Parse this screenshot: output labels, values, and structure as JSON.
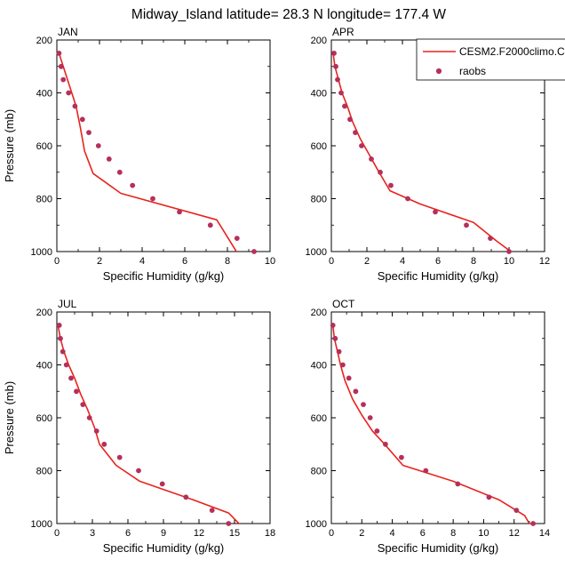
{
  "title": "Midway_Island  latitude= 28.3 N longitude= 177.4 W",
  "legend": {
    "model_label": "CESM2.F2000climo.C",
    "obs_label": "raobs",
    "line_color": "#e8231d",
    "marker_color": "#b5305a"
  },
  "chart_data": [
    {
      "type": "line",
      "panel_label": "JAN",
      "xlabel": "Specific Humidity (g/kg)",
      "ylabel": "Pressure (mb)",
      "xlim": [
        0,
        10
      ],
      "ylim": [
        200,
        1000
      ],
      "y_inverted": true,
      "x_ticks": [
        0,
        2,
        4,
        6,
        8,
        10
      ],
      "y_ticks": [
        200,
        400,
        600,
        800,
        1000
      ],
      "series": [
        {
          "name": "CESM2.F2000climo.C",
          "style": "line",
          "points": [
            [
              0.1,
              250
            ],
            [
              0.3,
              300
            ],
            [
              0.5,
              350
            ],
            [
              0.7,
              400
            ],
            [
              0.9,
              450
            ],
            [
              1.1,
              530
            ],
            [
              1.3,
              620
            ],
            [
              1.7,
              705
            ],
            [
              3.0,
              780
            ],
            [
              7.5,
              880
            ],
            [
              8.5,
              1010
            ]
          ]
        },
        {
          "name": "raobs",
          "style": "markers",
          "points": [
            [
              0.1,
              250
            ],
            [
              0.2,
              300
            ],
            [
              0.3,
              350
            ],
            [
              0.55,
              400
            ],
            [
              0.85,
              450
            ],
            [
              1.2,
              500
            ],
            [
              1.5,
              550
            ],
            [
              1.95,
              600
            ],
            [
              2.45,
              650
            ],
            [
              2.95,
              700
            ],
            [
              3.55,
              750
            ],
            [
              4.5,
              800
            ],
            [
              5.75,
              850
            ],
            [
              7.2,
              900
            ],
            [
              8.45,
              950
            ],
            [
              9.25,
              1000
            ]
          ]
        }
      ]
    },
    {
      "type": "line",
      "panel_label": "APR",
      "xlabel": "Specific Humidity (g/kg)",
      "ylabel": "",
      "xlim": [
        0,
        12
      ],
      "ylim": [
        200,
        1000
      ],
      "y_inverted": true,
      "x_ticks": [
        0,
        2,
        4,
        6,
        8,
        10,
        12
      ],
      "y_ticks": [
        200,
        400,
        600,
        800,
        1000
      ],
      "series": [
        {
          "name": "CESM2.F2000climo.C",
          "style": "line",
          "points": [
            [
              0.1,
              250
            ],
            [
              0.2,
              300
            ],
            [
              0.4,
              350
            ],
            [
              0.6,
              400
            ],
            [
              0.9,
              450
            ],
            [
              1.2,
              510
            ],
            [
              1.6,
              570
            ],
            [
              2.1,
              630
            ],
            [
              2.6,
              690
            ],
            [
              3.3,
              770
            ],
            [
              5.0,
              820
            ],
            [
              8.0,
              890
            ],
            [
              9.3,
              960
            ],
            [
              10.3,
              1010
            ]
          ]
        },
        {
          "name": "raobs",
          "style": "markers",
          "points": [
            [
              0.15,
              250
            ],
            [
              0.25,
              300
            ],
            [
              0.35,
              350
            ],
            [
              0.55,
              400
            ],
            [
              0.75,
              450
            ],
            [
              1.05,
              500
            ],
            [
              1.35,
              550
            ],
            [
              1.7,
              600
            ],
            [
              2.25,
              650
            ],
            [
              2.75,
              700
            ],
            [
              3.35,
              750
            ],
            [
              4.3,
              800
            ],
            [
              5.85,
              850
            ],
            [
              7.6,
              900
            ],
            [
              8.95,
              950
            ],
            [
              10.0,
              1000
            ]
          ]
        }
      ]
    },
    {
      "type": "line",
      "panel_label": "JUL",
      "xlabel": "Specific Humidity (g/kg)",
      "ylabel": "Pressure (mb)",
      "xlim": [
        0,
        18
      ],
      "ylim": [
        200,
        1000
      ],
      "y_inverted": true,
      "x_ticks": [
        0,
        3,
        6,
        9,
        12,
        15,
        18
      ],
      "y_ticks": [
        200,
        400,
        600,
        800,
        1000
      ],
      "series": [
        {
          "name": "CESM2.F2000climo.C",
          "style": "line",
          "points": [
            [
              0.1,
              250
            ],
            [
              0.3,
              300
            ],
            [
              0.6,
              350
            ],
            [
              1.0,
              400
            ],
            [
              1.5,
              450
            ],
            [
              2.0,
              510
            ],
            [
              2.6,
              570
            ],
            [
              3.2,
              640
            ],
            [
              3.6,
              700
            ],
            [
              5.0,
              780
            ],
            [
              7.0,
              840
            ],
            [
              11.5,
              910
            ],
            [
              14.5,
              960
            ],
            [
              15.6,
              1010
            ]
          ]
        },
        {
          "name": "raobs",
          "style": "markers",
          "points": [
            [
              0.2,
              250
            ],
            [
              0.3,
              300
            ],
            [
              0.5,
              350
            ],
            [
              0.8,
              400
            ],
            [
              1.2,
              450
            ],
            [
              1.65,
              500
            ],
            [
              2.2,
              550
            ],
            [
              2.75,
              600
            ],
            [
              3.35,
              650
            ],
            [
              4.0,
              700
            ],
            [
              5.3,
              750
            ],
            [
              6.9,
              800
            ],
            [
              8.9,
              850
            ],
            [
              10.9,
              900
            ],
            [
              13.1,
              950
            ],
            [
              14.5,
              1000
            ]
          ]
        }
      ]
    },
    {
      "type": "line",
      "panel_label": "OCT",
      "xlabel": "Specific Humidity (g/kg)",
      "ylabel": "",
      "xlim": [
        0,
        14
      ],
      "ylim": [
        200,
        1000
      ],
      "y_inverted": true,
      "x_ticks": [
        0,
        2,
        4,
        6,
        8,
        10,
        12,
        14
      ],
      "y_ticks": [
        200,
        400,
        600,
        800,
        1000
      ],
      "series": [
        {
          "name": "CESM2.F2000climo.C",
          "style": "line",
          "points": [
            [
              0.1,
              250
            ],
            [
              0.2,
              300
            ],
            [
              0.4,
              350
            ],
            [
              0.6,
              400
            ],
            [
              0.9,
              460
            ],
            [
              1.4,
              530
            ],
            [
              2.0,
              590
            ],
            [
              2.7,
              650
            ],
            [
              3.5,
              700
            ],
            [
              4.7,
              780
            ],
            [
              8.0,
              840
            ],
            [
              11.0,
              910
            ],
            [
              12.7,
              970
            ],
            [
              13.1,
              1010
            ]
          ]
        },
        {
          "name": "raobs",
          "style": "markers",
          "points": [
            [
              0.1,
              250
            ],
            [
              0.25,
              300
            ],
            [
              0.5,
              350
            ],
            [
              0.75,
              400
            ],
            [
              1.15,
              450
            ],
            [
              1.6,
              500
            ],
            [
              2.1,
              550
            ],
            [
              2.55,
              600
            ],
            [
              3.0,
              650
            ],
            [
              3.55,
              700
            ],
            [
              4.6,
              750
            ],
            [
              6.2,
              800
            ],
            [
              8.3,
              850
            ],
            [
              10.35,
              900
            ],
            [
              12.15,
              950
            ],
            [
              13.25,
              1000
            ]
          ]
        }
      ]
    }
  ]
}
